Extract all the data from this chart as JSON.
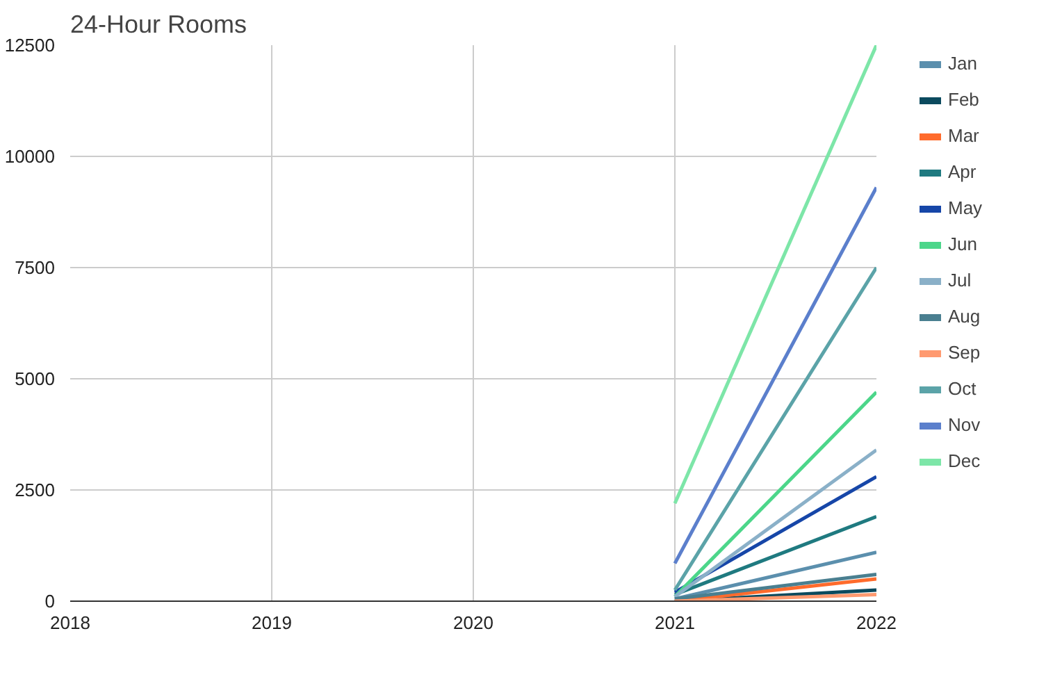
{
  "chart_data": {
    "type": "line",
    "title": "24-Hour Rooms",
    "x": [
      2021,
      2022
    ],
    "xlim": [
      2018,
      2022
    ],
    "xticks": [
      2018,
      2019,
      2020,
      2021,
      2022
    ],
    "ylim": [
      0,
      12500
    ],
    "yticks": [
      0,
      2500,
      5000,
      7500,
      10000,
      12500
    ],
    "grid": true,
    "legend": "right",
    "series": [
      {
        "name": "Jan",
        "color": "#5b8fad",
        "values": [
          50,
          1100
        ]
      },
      {
        "name": "Feb",
        "color": "#0b4a5e",
        "values": [
          0,
          250
        ]
      },
      {
        "name": "Mar",
        "color": "#ff6b2c",
        "values": [
          0,
          500
        ]
      },
      {
        "name": "Apr",
        "color": "#1f7a80",
        "values": [
          150,
          1900
        ]
      },
      {
        "name": "May",
        "color": "#1646a8",
        "values": [
          200,
          2800
        ]
      },
      {
        "name": "Jun",
        "color": "#4cd68a",
        "values": [
          100,
          4700
        ]
      },
      {
        "name": "Jul",
        "color": "#8ab0c8",
        "values": [
          100,
          3400
        ]
      },
      {
        "name": "Aug",
        "color": "#4a7f90",
        "values": [
          50,
          600
        ]
      },
      {
        "name": "Sep",
        "color": "#ff9a70",
        "values": [
          0,
          150
        ]
      },
      {
        "name": "Oct",
        "color": "#5ba3a8",
        "values": [
          250,
          7500
        ]
      },
      {
        "name": "Nov",
        "color": "#5b7fcc",
        "values": [
          850,
          9300
        ]
      },
      {
        "name": "Dec",
        "color": "#7de6a8",
        "values": [
          2200,
          12500
        ]
      }
    ]
  }
}
